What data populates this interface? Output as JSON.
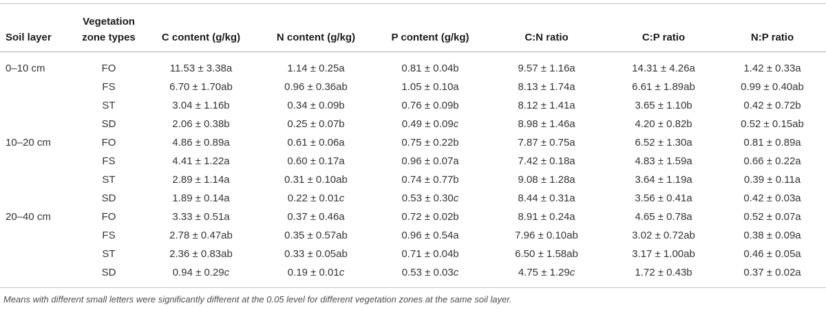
{
  "table": {
    "columns": [
      {
        "id": "soil-layer",
        "lines": [
          "Soil layer"
        ]
      },
      {
        "id": "vegetation-zone",
        "lines": [
          "Vegetation",
          "zone types"
        ]
      },
      {
        "id": "c-content",
        "lines": [
          "C content (g/kg)"
        ]
      },
      {
        "id": "n-content",
        "lines": [
          "N content (g/kg)"
        ]
      },
      {
        "id": "p-content",
        "lines": [
          "P content (g/kg)"
        ]
      },
      {
        "id": "cn-ratio",
        "lines": [
          "C:N ratio"
        ]
      },
      {
        "id": "cp-ratio",
        "lines": [
          "C:P ratio"
        ]
      },
      {
        "id": "np-ratio",
        "lines": [
          "N:P ratio"
        ]
      }
    ],
    "groups": [
      {
        "soil_layer": "0–10 cm",
        "rows": [
          {
            "zone": "FO",
            "values": [
              "11.53 ± 3.38a",
              "1.14 ± 0.25a",
              "0.81 ± 0.04b",
              "9.57 ± 1.16a",
              "14.31 ± 4.26a",
              "1.42 ± 0.33a"
            ]
          },
          {
            "zone": "FS",
            "values": [
              "6.70 ± 1.70ab",
              "0.96 ± 0.36ab",
              "1.05 ± 0.10a",
              "8.13 ± 1.74a",
              "6.61 ± 1.89ab",
              "0.99 ± 0.40ab"
            ]
          },
          {
            "zone": "ST",
            "values": [
              "3.04 ± 1.16b",
              "0.34 ± 0.09b",
              "0.76 ± 0.09b",
              "8.12 ± 1.41a",
              "3.65 ± 1.10b",
              "0.42 ± 0.72b"
            ]
          },
          {
            "zone": "SD",
            "values": [
              "2.06 ± 0.38b",
              "0.25 ± 0.07b",
              "0.49 ± 0.09c",
              "8.98 ± 1.46a",
              "4.20 ± 0.82b",
              "0.52 ± 0.15ab"
            ]
          }
        ]
      },
      {
        "soil_layer": "10–20 cm",
        "rows": [
          {
            "zone": "FO",
            "values": [
              "4.86 ± 0.89a",
              "0.61 ± 0.06a",
              "0.75 ± 0.22b",
              "7.87 ± 0.75a",
              "6.52 ± 1.30a",
              "0.81 ± 0.89a"
            ]
          },
          {
            "zone": "FS",
            "values": [
              "4.41 ± 1.22a",
              "0.60 ± 0.17a",
              "0.96 ± 0.07a",
              "7.42 ± 0.18a",
              "4.83 ± 1.59a",
              "0.66 ± 0.22a"
            ]
          },
          {
            "zone": "ST",
            "values": [
              "2.89 ± 1.14a",
              "0.31 ± 0.10ab",
              "0.74 ± 0.77b",
              "9.08 ± 1.28a",
              "3.64 ± 1.19a",
              "0.39 ± 0.11a"
            ]
          },
          {
            "zone": "SD",
            "values": [
              "1.89 ± 0.14a",
              "0.22 ± 0.01c",
              "0.53 ± 0.30c",
              "8.44 ± 0.31a",
              "3.56 ± 0.41a",
              "0.42 ± 0.03a"
            ]
          }
        ]
      },
      {
        "soil_layer": "20–40 cm",
        "rows": [
          {
            "zone": "FO",
            "values": [
              "3.33 ± 0.51a",
              "0.37 ± 0.46a",
              "0.72 ± 0.02b",
              "8.91 ± 0.24a",
              "4.65 ± 0.78a",
              "0.52 ± 0.07a"
            ]
          },
          {
            "zone": "FS",
            "values": [
              "2.78 ± 0.47ab",
              "0.35 ± 0.57ab",
              "0.96 ± 0.54a",
              "7.96 ± 0.10ab",
              "3.02 ± 0.72ab",
              "0.38 ± 0.09a"
            ]
          },
          {
            "zone": "ST",
            "values": [
              "2.36 ± 0.83ab",
              "0.33 ± 0.05ab",
              "0.71 ± 0.04b",
              "6.50 ± 1.58ab",
              "3.17 ± 1.00ab",
              "0.46 ± 0.05a"
            ]
          },
          {
            "zone": "SD",
            "values": [
              "0.94 ± 0.29c",
              "0.19 ± 0.01c",
              "0.53 ± 0.03c",
              "4.75 ± 1.29c",
              "1.72 ± 0.43b",
              "0.37 ± 0.02a"
            ]
          }
        ]
      }
    ],
    "footnote": "Means with different small letters were significantly different at the 0.05 level for different vegetation zones at the same soil layer."
  }
}
